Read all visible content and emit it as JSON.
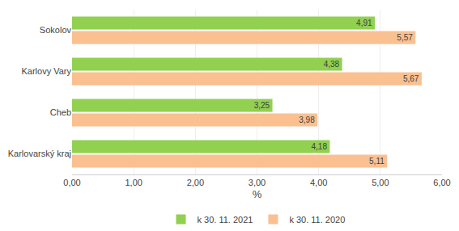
{
  "chart_data": {
    "type": "bar",
    "orientation": "horizontal",
    "categories": [
      "Karlovarský kraj",
      "Cheb",
      "Karlovy Vary",
      "Sokolov"
    ],
    "series": [
      {
        "name": "k 30. 11. 2021",
        "color": "#92D050",
        "values": [
          4.18,
          3.25,
          4.38,
          4.91
        ],
        "value_labels": [
          "4,18",
          "3,25",
          "4,38",
          "4,91"
        ]
      },
      {
        "name": "k 30. 11. 2020",
        "color": "#FAC090",
        "values": [
          5.11,
          3.98,
          5.67,
          5.57
        ],
        "value_labels": [
          "5,11",
          "3,98",
          "5,67",
          "5,57"
        ]
      }
    ],
    "xlabel": "%",
    "xlim": [
      0,
      6.0
    ],
    "xticks": [
      {
        "value": 0.0,
        "label": "0,00"
      },
      {
        "value": 1.0,
        "label": "1,00"
      },
      {
        "value": 2.0,
        "label": "2,00"
      },
      {
        "value": 3.0,
        "label": "3,00"
      },
      {
        "value": 4.0,
        "label": "4,00"
      },
      {
        "value": 5.0,
        "label": "5,00"
      },
      {
        "value": 6.0,
        "label": "6,00"
      }
    ],
    "grid": true,
    "legend": "bottom",
    "data_labels": true
  }
}
